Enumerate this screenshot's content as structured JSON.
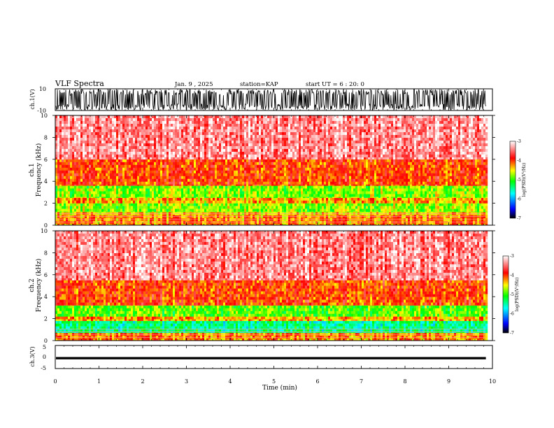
{
  "header": {
    "title": "VLF Spectra",
    "date": "Jan. 9 , 2025",
    "station": "station=KAP",
    "start": "start UT =  6 : 20: 0"
  },
  "chart_data": [
    {
      "type": "line",
      "id": "ch1-waveform",
      "ylabel": "ch.1(V)",
      "ylim": [
        -10,
        10
      ],
      "y_ticks": [
        "10",
        "-10"
      ],
      "x_range_min": [
        0,
        10
      ],
      "data_until_min": 9.85,
      "description_values": {
        "min_v": -10,
        "max_v": 10
      }
    },
    {
      "type": "heatmap",
      "id": "ch1-spectrogram",
      "ylabel": "ch.1\nFrequency (kHz)",
      "ylabel_lines": [
        "ch.1",
        "Frequency (kHz)"
      ],
      "ylim": [
        0,
        10
      ],
      "y_ticks": [
        "0",
        "2",
        "4",
        "6",
        "8",
        "10"
      ],
      "x_range_min": [
        0,
        10
      ],
      "data_until_min": 9.85,
      "colorbar": {
        "label": "log(PSD)(V²/Hz)",
        "range": [
          -7,
          -3
        ],
        "ticks": [
          "-3",
          "-4",
          "-5",
          "-6",
          "-7"
        ]
      },
      "bands": [
        {
          "f_low_khz": 0.0,
          "f_high_khz": 0.9,
          "log_psd": -4.2
        },
        {
          "f_low_khz": 0.9,
          "f_high_khz": 1.2,
          "log_psd": -4.4
        },
        {
          "f_low_khz": 1.2,
          "f_high_khz": 2.0,
          "log_psd": -4.8
        },
        {
          "f_low_khz": 2.0,
          "f_high_khz": 2.5,
          "log_psd": -4.3
        },
        {
          "f_low_khz": 2.5,
          "f_high_khz": 3.6,
          "log_psd": -4.8
        },
        {
          "f_low_khz": 3.6,
          "f_high_khz": 6.0,
          "log_psd": -4.0
        },
        {
          "f_low_khz": 6.0,
          "f_high_khz": 10.0,
          "log_psd": -3.4
        }
      ]
    },
    {
      "type": "heatmap",
      "id": "ch2-spectrogram",
      "ylabel": "ch.2\nFrequency (kHz)",
      "ylabel_lines": [
        "ch.2",
        "Frequency (kHz)"
      ],
      "ylim": [
        0,
        10
      ],
      "y_ticks": [
        "0",
        "2",
        "4",
        "6",
        "8",
        "10"
      ],
      "x_range_min": [
        0,
        10
      ],
      "data_until_min": 9.85,
      "colorbar": {
        "label": "log(PSD)(V²/Hz)",
        "range": [
          -7,
          -3
        ],
        "ticks": [
          "-3",
          "-4",
          "-5",
          "-6",
          "-7"
        ]
      },
      "bands": [
        {
          "f_low_khz": 0.0,
          "f_high_khz": 0.7,
          "log_psd": -4.2
        },
        {
          "f_low_khz": 0.7,
          "f_high_khz": 1.8,
          "log_psd": -5.4
        },
        {
          "f_low_khz": 1.8,
          "f_high_khz": 2.2,
          "log_psd": -4.3
        },
        {
          "f_low_khz": 2.2,
          "f_high_khz": 3.2,
          "log_psd": -4.9
        },
        {
          "f_low_khz": 3.2,
          "f_high_khz": 5.5,
          "log_psd": -4.0
        },
        {
          "f_low_khz": 5.5,
          "f_high_khz": 10.0,
          "log_psd": -3.4
        }
      ]
    },
    {
      "type": "line",
      "id": "ch3-waveform",
      "ylabel": "ch.3(V)",
      "ylim": [
        -5,
        5
      ],
      "y_ticks": [
        "5",
        "0",
        "-5"
      ],
      "x_range_min": [
        0,
        10
      ],
      "data_until_min": 9.85,
      "band_v": [
        -1.0,
        0.0
      ]
    }
  ],
  "xaxis": {
    "label": "Time (min)",
    "ticks": [
      "0",
      "1",
      "2",
      "3",
      "4",
      "5",
      "6",
      "7",
      "8",
      "9",
      "10"
    ]
  },
  "colors": {
    "spectrogram_background": "#ffffff",
    "waveform": "#000000",
    "colormap": [
      "#000000",
      "#0000ff",
      "#00ffff",
      "#00ff00",
      "#ffff00",
      "#ff0000",
      "#ffffff"
    ]
  }
}
